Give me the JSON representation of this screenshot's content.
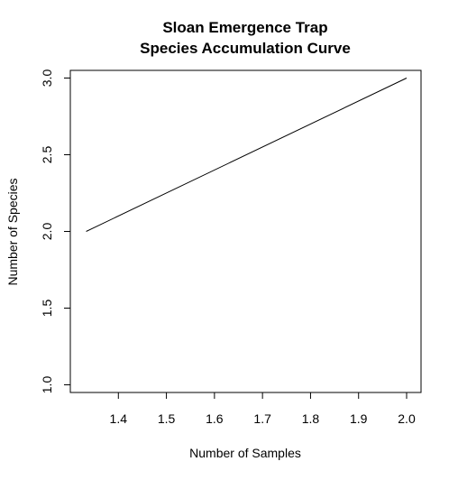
{
  "chart_data": {
    "type": "line",
    "title": "Sloan Emergence Trap",
    "subtitle": "Species Accumulation Curve",
    "xlabel": "Number of Samples",
    "ylabel": "Number of Species",
    "xlim": [
      1.3,
      2.03
    ],
    "ylim": [
      0.95,
      3.05
    ],
    "x_ticks": [
      1.4,
      1.5,
      1.6,
      1.7,
      1.8,
      1.9,
      2.0
    ],
    "x_tick_labels": [
      "1.4",
      "1.5",
      "1.6",
      "1.7",
      "1.8",
      "1.9",
      "2.0"
    ],
    "y_ticks": [
      1.0,
      1.5,
      2.0,
      2.5,
      3.0
    ],
    "y_tick_labels": [
      "1.0",
      "1.5",
      "2.0",
      "2.5",
      "3.0"
    ],
    "grid": false,
    "legend": "none",
    "line_color": "#000000",
    "series": [
      {
        "x": [
          1.333,
          2.0
        ],
        "y": [
          2.0,
          3.0
        ]
      }
    ]
  }
}
